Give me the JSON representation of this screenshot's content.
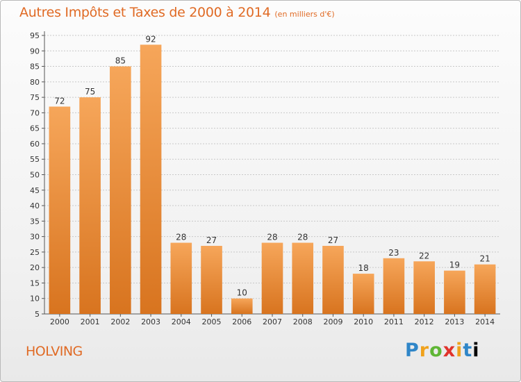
{
  "title": "Autres Impôts et Taxes de 2000 à 2014",
  "unit": "(en milliers d'€)",
  "commune": "HOLVING",
  "logo": "Proxiti",
  "colors": {
    "title": "#e06a24",
    "bar_top": "#f6a65a",
    "bar_bottom": "#d8741f",
    "grid": "#c8c8c8"
  },
  "chart_data": {
    "type": "bar",
    "title": "Autres Impôts et Taxes de 2000 à 2014",
    "subtitle": "(en milliers d'€)",
    "categories": [
      "2000",
      "2001",
      "2002",
      "2003",
      "2004",
      "2005",
      "2006",
      "2007",
      "2008",
      "2009",
      "2010",
      "2011",
      "2012",
      "2013",
      "2014"
    ],
    "values": [
      72,
      75,
      85,
      92,
      28,
      27,
      10,
      28,
      28,
      27,
      18,
      23,
      22,
      19,
      21
    ],
    "ylim": [
      5,
      95
    ],
    "yticks": [
      5,
      10,
      15,
      20,
      25,
      30,
      35,
      40,
      45,
      50,
      55,
      60,
      65,
      70,
      75,
      80,
      85,
      90,
      95
    ],
    "grid": true,
    "xlabel": "",
    "ylabel": ""
  }
}
